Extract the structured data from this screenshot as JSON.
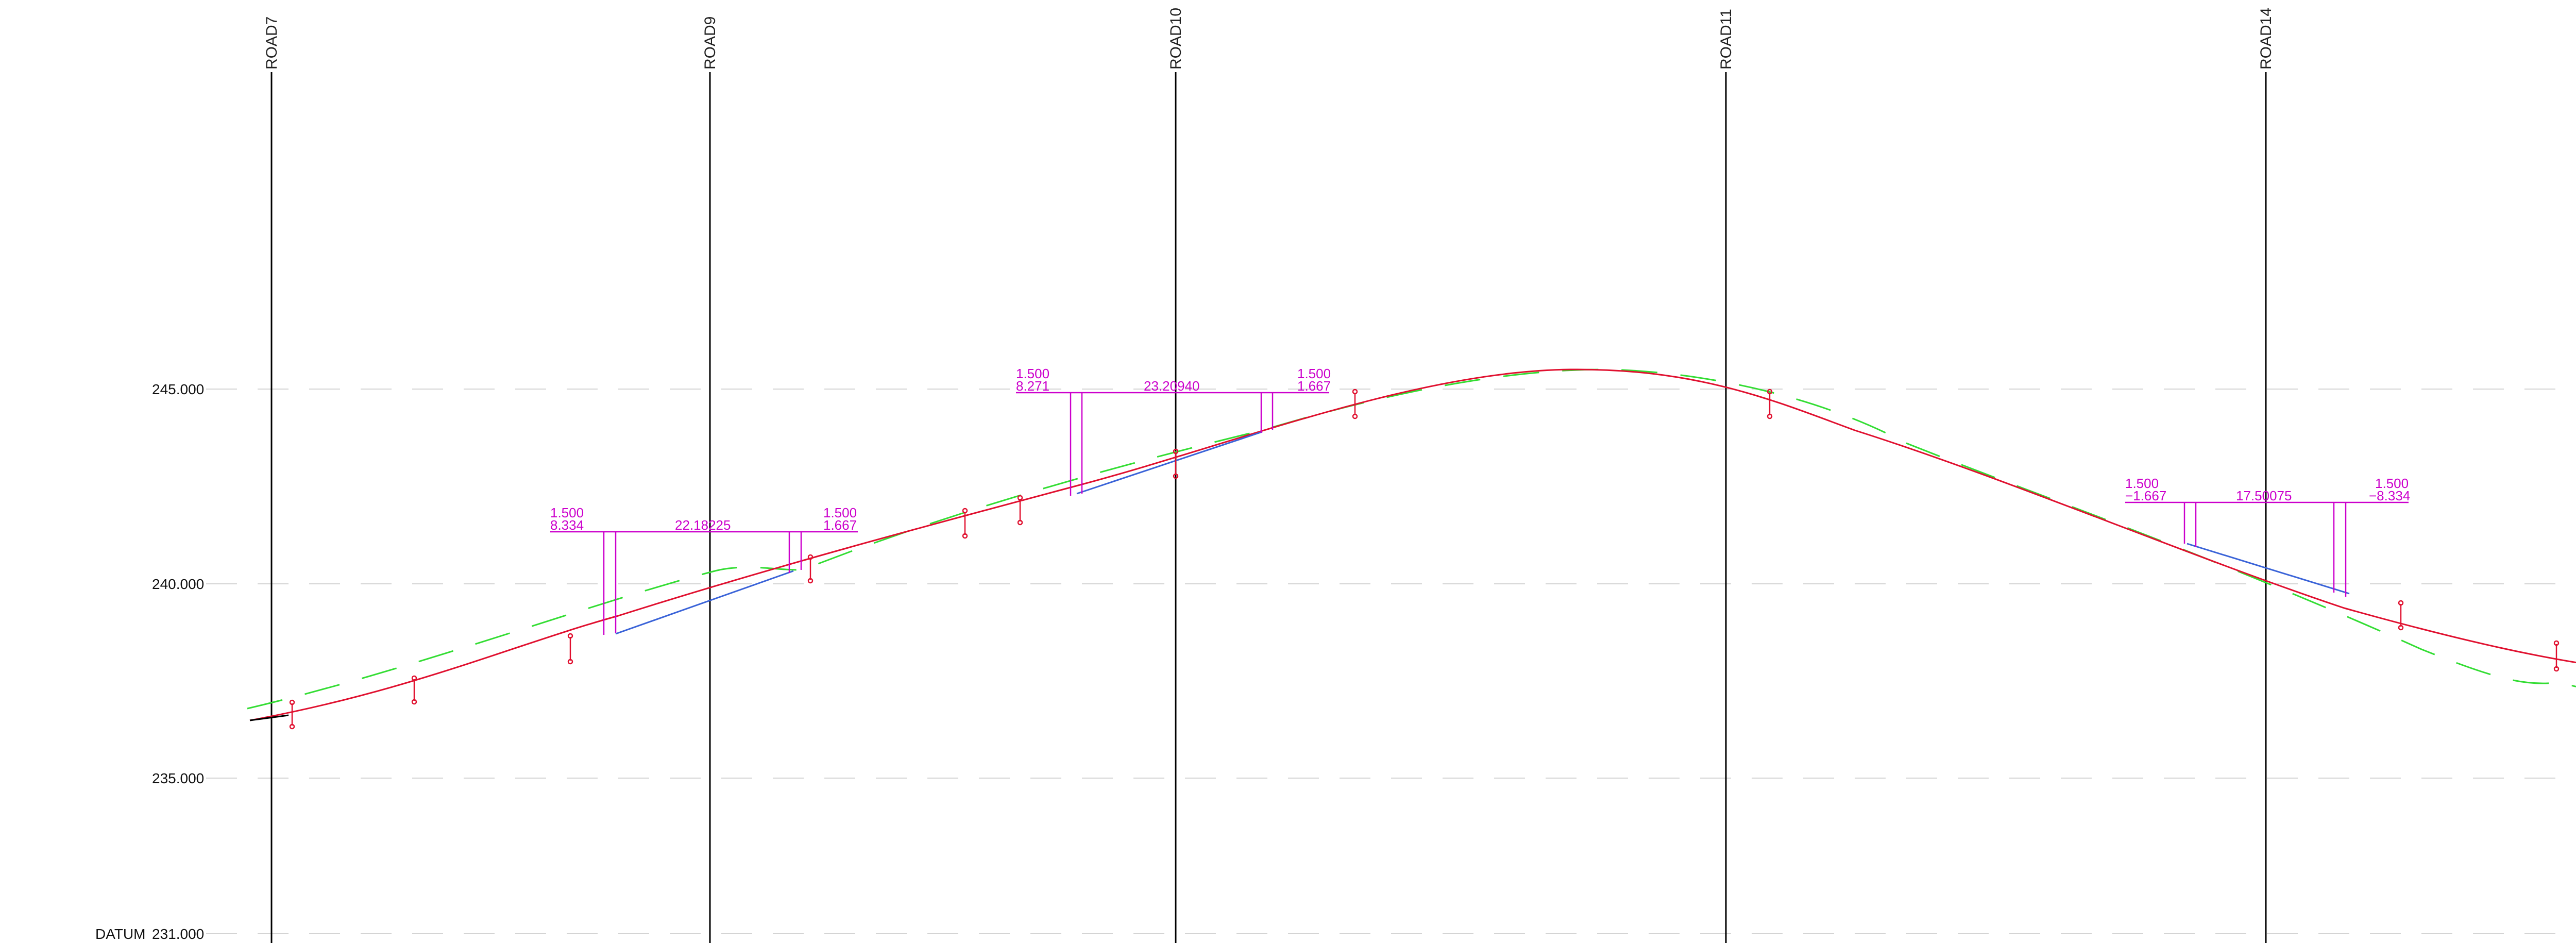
{
  "colors": {
    "background": "#ffffff",
    "road_line": "#000000",
    "grid": "#d4d4d4",
    "design_profile": "#e0102f",
    "existing_ground": "#33dd33",
    "dimension": "#cc00cc",
    "segment_blue": "#3a63d8",
    "marker": "#e0102f"
  },
  "datum_label": "DATUM",
  "elevations": [
    {
      "label": "245.000",
      "value": 245.0
    },
    {
      "label": "240.000",
      "value": 240.0
    },
    {
      "label": "235.000",
      "value": 235.0
    },
    {
      "label": "231.000",
      "value": 231.0
    }
  ],
  "roads": [
    "ROAD7",
    "ROAD9",
    "ROAD10",
    "ROAD11",
    "ROAD14"
  ],
  "dimension_groups": [
    {
      "left_top": "1.500",
      "left_bottom": "8.334",
      "span": "22.18225",
      "right_top": "1.500",
      "right_bottom": "1.667"
    },
    {
      "left_top": "1.500",
      "left_bottom": "8.271",
      "span": "23.20940",
      "right_top": "1.500",
      "right_bottom": "1.667"
    },
    {
      "left_top": "1.500",
      "left_bottom": "−1.667",
      "span": "17.50075",
      "right_top": "1.500",
      "right_bottom": "−8.334"
    }
  ]
}
